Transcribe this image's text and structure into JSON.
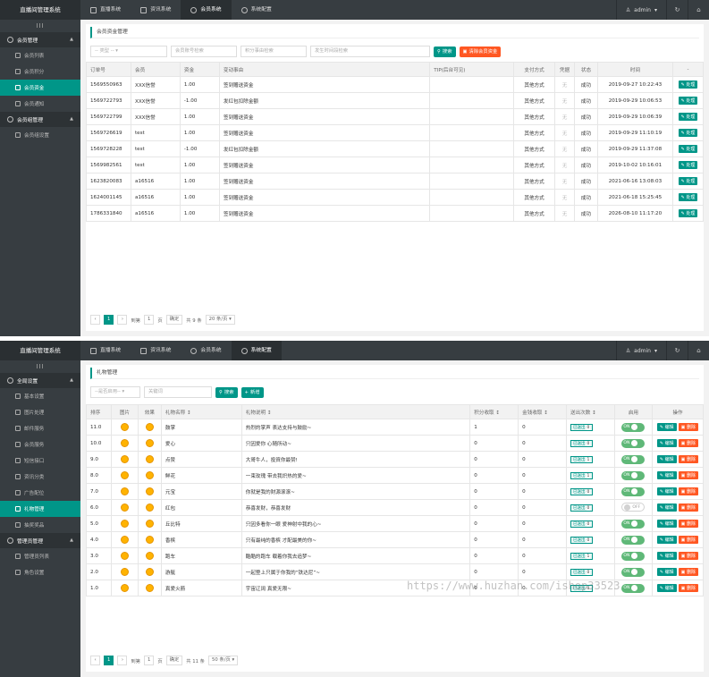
{
  "panel1": {
    "brand": "直播间管理系统",
    "tabs": [
      "直播系统",
      "资讯系统",
      "会员系统",
      "系统配置"
    ],
    "active_tab": 2,
    "user": "admin",
    "sidebar_toggle": "III",
    "groups": [
      {
        "label": "会员管理",
        "items": [
          "会员列表",
          "会员积分",
          "会员资金",
          "会员通知"
        ],
        "active": 2
      },
      {
        "label": "会员组管理",
        "items": [
          "会员组设置"
        ],
        "active": -1
      }
    ],
    "page_title": "会员资金管理",
    "filters": {
      "type_select": "-- 类型 --",
      "account_ph": "会员账号检索",
      "reason_ph": "积分事由检索",
      "time_ph": "发生时间段检索",
      "search_btn": "搜索",
      "clear_btn": "清除会员资金"
    },
    "columns": [
      "订单号",
      "会员",
      "资金",
      "变动事由",
      "TIP(后台可见)",
      "支付方式",
      "凭据",
      "状态",
      "时间",
      "-"
    ],
    "rows": [
      [
        "1569550963",
        "XXX信誉",
        "1.00",
        "签到赠送资金",
        "",
        "其他方式",
        "无",
        "成功",
        "2019-09-27 10:22:43"
      ],
      [
        "1569722793",
        "XXX信誉",
        "-1.00",
        "发红包扣除金额",
        "",
        "其他方式",
        "无",
        "成功",
        "2019-09-29 10:06:53"
      ],
      [
        "1569722799",
        "XXX信誉",
        "1.00",
        "签到赠送资金",
        "",
        "其他方式",
        "无",
        "成功",
        "2019-09-29 10:06:39"
      ],
      [
        "1569726619",
        "test",
        "1.00",
        "签到赠送资金",
        "",
        "其他方式",
        "无",
        "成功",
        "2019-09-29 11:10:19"
      ],
      [
        "1569728228",
        "test",
        "-1.00",
        "发红包扣除金额",
        "",
        "其他方式",
        "无",
        "成功",
        "2019-09-29 11:37:08"
      ],
      [
        "1569982561",
        "test",
        "1.00",
        "签到赠送资金",
        "",
        "其他方式",
        "无",
        "成功",
        "2019-10-02 10:16:01"
      ],
      [
        "1623820083",
        "a16516",
        "1.00",
        "签到赠送资金",
        "",
        "其他方式",
        "无",
        "成功",
        "2021-06-16 13:08:03"
      ],
      [
        "1624001145",
        "a16516",
        "1.00",
        "签到赠送资金",
        "",
        "其他方式",
        "无",
        "成功",
        "2021-06-18 15:25:45"
      ],
      [
        "1786331840",
        "a16516",
        "1.00",
        "签到赠送资金",
        "",
        "其他方式",
        "无",
        "成功",
        "2026-08-10 11:17:20"
      ]
    ],
    "action_label": "处理",
    "pager": {
      "page": "1",
      "goto_label": "到第",
      "input": "1",
      "page_unit": "页",
      "confirm": "确定",
      "total": "共 9 条",
      "per_page": "20 条/页"
    }
  },
  "panel2": {
    "brand": "直播间管理系统",
    "tabs": [
      "直播系统",
      "资讯系统",
      "会员系统",
      "系统配置"
    ],
    "active_tab": 3,
    "user": "admin",
    "sidebar_toggle": "III",
    "groups": [
      {
        "label": "全局设置",
        "items": [
          "基本设置",
          "图片处理",
          "邮件服务",
          "会员服务",
          "短信接口",
          "资讯分类",
          "广告配位",
          "礼物管理",
          "抽奖奖品"
        ],
        "active": 7
      },
      {
        "label": "管理员管理",
        "items": [
          "管理员列表",
          "角色设置"
        ],
        "active": -1
      }
    ],
    "page_title": "礼物管理",
    "filters": {
      "enable_select": "--是否启用--",
      "keyword_ph": "关键词",
      "search_btn": "搜索",
      "add_btn": "新增"
    },
    "columns": [
      "排序",
      "图片",
      "效果",
      "礼物名称 ↕",
      "礼物说明 ↕",
      "积分收取 ↕",
      "金钱收取 ↕",
      "送出次数 ↕",
      "启用",
      "操作"
    ],
    "rows": [
      {
        "sort": "11.0",
        "name": "鼓掌",
        "desc": "热烈的掌声 表达支持与鼓励~",
        "points": "1",
        "money": "0",
        "sent": "已送出",
        "count": "0",
        "on": true
      },
      {
        "sort": "10.0",
        "name": "爱心",
        "desc": "只因爱你 心随所动~",
        "points": "0",
        "money": "0",
        "sent": "已送出",
        "count": "0",
        "on": true
      },
      {
        "sort": "9.0",
        "name": "点赞",
        "desc": "大哥牛人，投資你最赞!",
        "points": "0",
        "money": "0",
        "sent": "已送出",
        "count": "1",
        "on": true
      },
      {
        "sort": "8.0",
        "name": "鲜花",
        "desc": "一束玫瑰 带去我炽热的爱~",
        "points": "0",
        "money": "0",
        "sent": "已送出",
        "count": "1",
        "on": true
      },
      {
        "sort": "7.0",
        "name": "元宝",
        "desc": "你就是我的财源滚滚~",
        "points": "0",
        "money": "0",
        "sent": "已送出",
        "count": "0",
        "on": true
      },
      {
        "sort": "6.0",
        "name": "红包",
        "desc": "恭喜发财，恭喜发财",
        "points": "0",
        "money": "0",
        "sent": "已送出",
        "count": "0",
        "on": false
      },
      {
        "sort": "5.0",
        "name": "丘比特",
        "desc": "只因多看你一眼 爱神射中我的心~",
        "points": "0",
        "money": "0",
        "sent": "已送出",
        "count": "0",
        "on": true
      },
      {
        "sort": "4.0",
        "name": "香槟",
        "desc": "只有最纯的香槟 才配最美的你~",
        "points": "0",
        "money": "0",
        "sent": "已送出",
        "count": "0",
        "on": true
      },
      {
        "sort": "3.0",
        "name": "跑车",
        "desc": "酷酷的跑车 载着你我去追梦~",
        "points": "0",
        "money": "0",
        "sent": "已送出",
        "count": "1",
        "on": true
      },
      {
        "sort": "2.0",
        "name": "游艇",
        "desc": "一起登上只属于你我的“铁达尼”~",
        "points": "0",
        "money": "0",
        "sent": "已送出",
        "count": "0",
        "on": true
      },
      {
        "sort": "1.0",
        "name": "真爱火箭",
        "desc": "宇宙辽阔 真爱无限~",
        "points": "0",
        "money": "0",
        "sent": "已送出",
        "count": "0",
        "on": true
      }
    ],
    "toggle_on": "ON",
    "toggle_off": "OFF",
    "edit_label": "编辑",
    "delete_label": "删除",
    "pager": {
      "page": "1",
      "goto_label": "到第",
      "input": "1",
      "page_unit": "页",
      "confirm": "确定",
      "total": "共 11 条",
      "per_page": "50 条/页"
    }
  },
  "watermark": "https://www.huzhan.com/ishop33523"
}
